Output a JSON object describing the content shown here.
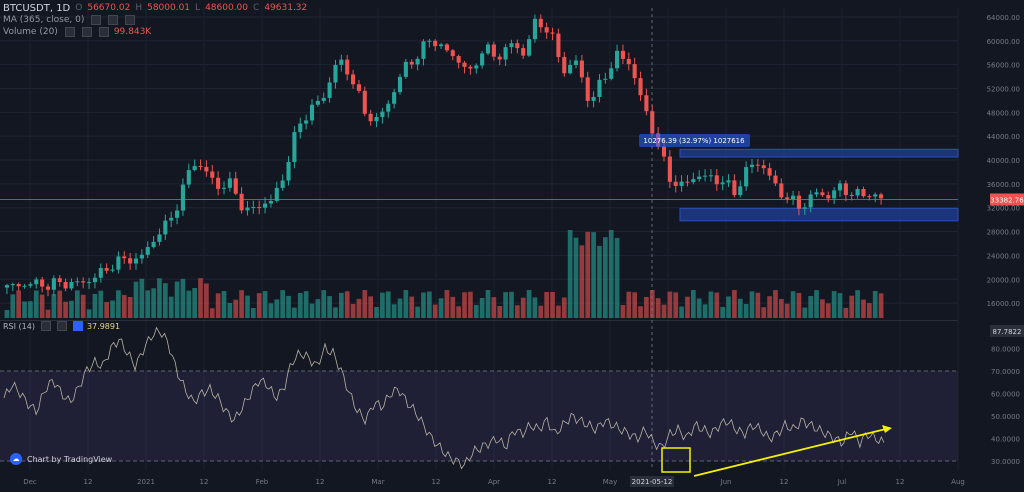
{
  "header": {
    "symbol": "BTCUSDT, 1D",
    "open_label": "O",
    "open": "56670.02",
    "high_label": "H",
    "high": "58000.01",
    "low_label": "L",
    "low": "48600.00",
    "close_label": "C",
    "close": "49631.32",
    "ma_label": "MA (365, close, 0)",
    "volume_label": "Volume (20)",
    "volume_value": "99.843K"
  },
  "rsi_header": {
    "label": "RSI (14)",
    "value": "37.9891"
  },
  "brand": {
    "text": "Chart by TradingView",
    "icon": "tradingview-logo-icon"
  },
  "colors": {
    "background": "#131722",
    "up": "#26a69a",
    "down": "#ef5350",
    "rsi_line": "#c9c2b0",
    "zone_fill": "#1e3a8a",
    "annotation": "#f5f200",
    "price_line": "#ef5350"
  },
  "chart_data": [
    {
      "type": "candlestick",
      "title": "BTCUSDT, 1D",
      "price_axis_ticks": [
        16000,
        20000,
        24000,
        28000,
        32000,
        36000,
        40000,
        44000,
        48000,
        52000,
        56000,
        60000,
        64000
      ],
      "price_axis_labels": [
        "16000.00",
        "20000.00",
        "24000.00",
        "28000.00",
        "32000.00",
        "36000.00",
        "40000.00",
        "44000.00",
        "48000.00",
        "52000.00",
        "56000.00",
        "60000.00",
        "64000.00"
      ],
      "ylim": [
        13500,
        65500
      ],
      "current_price_label": "33382.76",
      "current_price": 33382.76,
      "x_axis_labels": [
        "Dec",
        "12",
        "2021",
        "12",
        "Feb",
        "12",
        "Mar",
        "12",
        "Apr",
        "12",
        "May",
        "2021-05-12",
        "Jun",
        "12",
        "Jul",
        "12",
        "Aug"
      ],
      "crosshair_label": "2021-05-12",
      "measure_label": "10276.39 (32.97%) 1027616",
      "zones": [
        {
          "name": "resistance",
          "from": 40500,
          "to": 41800
        },
        {
          "name": "support",
          "from": 29800,
          "to": 31900
        }
      ],
      "series": [
        {
          "name": "BTCUSDT",
          "anchors": [
            [
              18600
            ],
            [
              19100
            ],
            [
              19300
            ],
            [
              19000
            ],
            [
              19400
            ],
            [
              19200
            ],
            [
              19600
            ],
            [
              20900
            ],
            [
              22500
            ],
            [
              23500
            ],
            [
              23200
            ],
            [
              26500
            ],
            [
              29000
            ],
            [
              33000
            ],
            [
              40000
            ],
            [
              38000
            ],
            [
              35500
            ],
            [
              36000
            ],
            [
              31000
            ],
            [
              32500
            ],
            [
              33000
            ],
            [
              38000
            ],
            [
              46000
            ],
            [
              48500
            ],
            [
              51000
            ],
            [
              57000
            ],
            [
              54000
            ],
            [
              48000
            ],
            [
              46500
            ],
            [
              50500
            ],
            [
              55500
            ],
            [
              57500
            ],
            [
              60500
            ],
            [
              58500
            ],
            [
              57000
            ],
            [
              54500
            ],
            [
              59000
            ],
            [
              57000
            ],
            [
              59500
            ],
            [
              58000
            ],
            [
              63500
            ],
            [
              61500
            ],
            [
              55000
            ],
            [
              56500
            ],
            [
              49500
            ],
            [
              53500
            ],
            [
              57500
            ],
            [
              56500
            ],
            [
              49500
            ],
            [
              43500
            ],
            [
              37000
            ],
            [
              35500
            ],
            [
              37500
            ],
            [
              37000
            ],
            [
              36500
            ],
            [
              34500
            ],
            [
              39000
            ],
            [
              39500
            ],
            [
              35500
            ],
            [
              33500
            ],
            [
              32000
            ],
            [
              34500
            ],
            [
              34000
            ],
            [
              35500
            ],
            [
              34000
            ],
            [
              34500
            ],
            [
              33382
            ]
          ]
        }
      ],
      "volume_peaks": [
        {
          "near": "2021-05-12",
          "level": "max"
        }
      ]
    },
    {
      "type": "line",
      "title": "RSI (14)",
      "value": 37.9891,
      "axis_ticks": [
        30,
        40,
        50,
        60,
        70,
        80
      ],
      "axis_labels": [
        "30.0000",
        "40.0000",
        "50.0000",
        "60.0000",
        "70.0000",
        "80.0000"
      ],
      "top_label": "87.7822",
      "ylim": [
        26,
        90
      ],
      "bands": {
        "upper": 70,
        "lower": 30
      },
      "series": [
        {
          "name": "RSI",
          "values": [
            58,
            64,
            60,
            55,
            52,
            62,
            66,
            60,
            56,
            62,
            70,
            74,
            72,
            80,
            84,
            78,
            72,
            80,
            86,
            88,
            82,
            70,
            62,
            56,
            60,
            62,
            58,
            52,
            48,
            54,
            60,
            66,
            64,
            58,
            62,
            74,
            78,
            76,
            72,
            80,
            78,
            70,
            60,
            52,
            48,
            56,
            54,
            60,
            62,
            56,
            52,
            46,
            40,
            36,
            32,
            30,
            28,
            34,
            36,
            38,
            40,
            36,
            44,
            42,
            46,
            44,
            48,
            42,
            46,
            50,
            48,
            46,
            44,
            48,
            46,
            44,
            42,
            40,
            44,
            38,
            36,
            42,
            44,
            40,
            46,
            44,
            42,
            46,
            48,
            44,
            42,
            46,
            44,
            40,
            42,
            46,
            44,
            48,
            46,
            44,
            42,
            40,
            38,
            44,
            38,
            42,
            40,
            38
          ]
        }
      ],
      "trendline": {
        "from": 30,
        "to": 40,
        "note": "rising"
      }
    }
  ]
}
